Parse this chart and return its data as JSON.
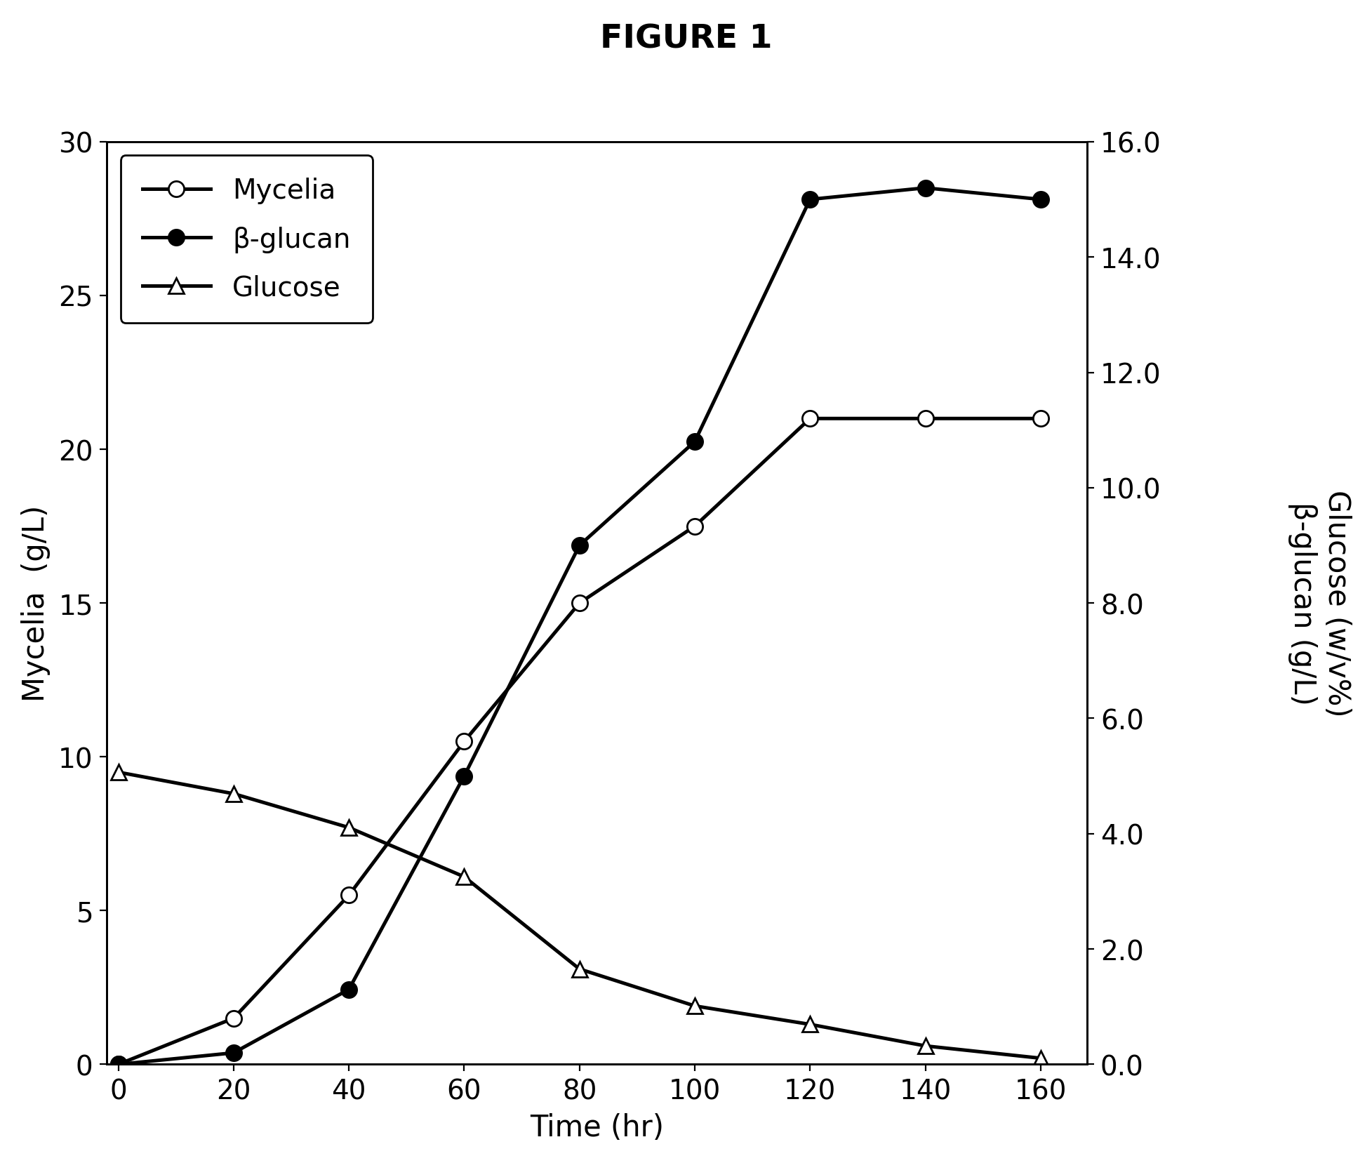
{
  "title": "FIGURE 1",
  "xlabel": "Time (hr)",
  "ylabel_left": "Mycelia  (g/L)",
  "ylabel_right": "Glucose (w/v%)\nβ-glucan (g/L)",
  "time": [
    0,
    20,
    40,
    60,
    80,
    100,
    120,
    140,
    160
  ],
  "mycelia": [
    0.0,
    1.5,
    5.5,
    10.5,
    15.0,
    17.5,
    21.0,
    21.0,
    21.0
  ],
  "beta_glucan": [
    0.0,
    0.2,
    1.3,
    5.0,
    9.0,
    10.8,
    15.0,
    15.2,
    15.0
  ],
  "glucose": [
    9.5,
    8.8,
    7.7,
    6.1,
    3.1,
    1.9,
    1.3,
    0.6,
    0.2
  ],
  "ylim_left": [
    0,
    30
  ],
  "ylim_right": [
    0,
    16.0
  ],
  "yticks_left": [
    0,
    5,
    10,
    15,
    20,
    25,
    30
  ],
  "yticks_right": [
    0.0,
    2.0,
    4.0,
    6.0,
    8.0,
    10.0,
    12.0,
    14.0,
    16.0
  ],
  "xticks": [
    0,
    20,
    40,
    60,
    80,
    100,
    120,
    140,
    160
  ],
  "xlim": [
    -2,
    168
  ],
  "legend_labels": [
    "Mycelia",
    "β-glucan",
    "Glucose"
  ],
  "background_color": "#ffffff",
  "line_color": "#000000",
  "title_fontsize": 17,
  "label_fontsize": 15,
  "tick_fontsize": 14,
  "legend_fontsize": 14,
  "marker_size": 8,
  "line_width": 1.8
}
